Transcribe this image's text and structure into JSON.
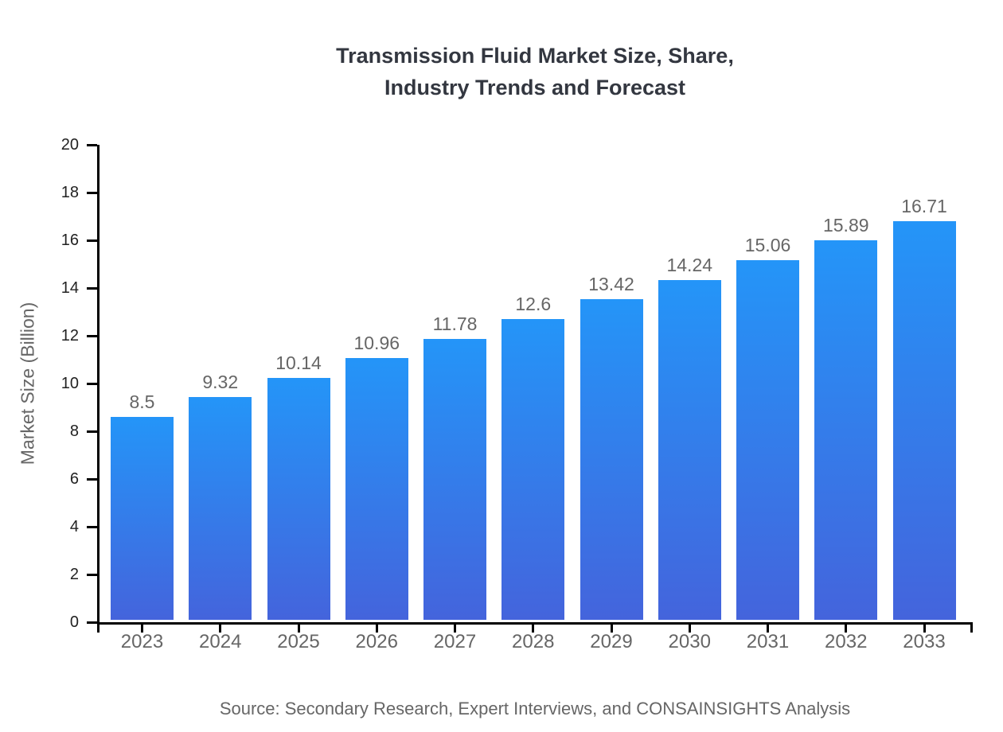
{
  "chart_data": {
    "type": "bar",
    "title_line1": "Transmission Fluid Market Size, Share,",
    "title_line2": "Industry Trends and Forecast",
    "ylabel": "Market Size (Billion)",
    "xlabel": "",
    "categories": [
      "2023",
      "2024",
      "2025",
      "2026",
      "2027",
      "2028",
      "2029",
      "2030",
      "2031",
      "2032",
      "2033"
    ],
    "values": [
      8.5,
      9.32,
      10.14,
      10.96,
      11.78,
      12.6,
      13.42,
      14.24,
      15.06,
      15.89,
      16.71
    ],
    "value_labels": [
      "8.5",
      "9.32",
      "10.14",
      "10.96",
      "11.78",
      "12.6",
      "13.42",
      "14.24",
      "15.06",
      "15.89",
      "16.71"
    ],
    "ylim": [
      0,
      20
    ],
    "yticks": [
      0,
      2,
      4,
      6,
      8,
      10,
      12,
      14,
      16,
      18,
      20
    ],
    "grid": false,
    "legend": "none",
    "source": "Source: Secondary Research, Expert Interviews, and CONSAINSIGHTS Analysis",
    "colors": {
      "bar_gradient_top": "#2495F8",
      "bar_gradient_bottom": "#4464DC",
      "axis": "#000000",
      "title_text": "#333740",
      "y_tick_text": "#222222",
      "label_text": "#666666",
      "background": "#ffffff"
    }
  }
}
